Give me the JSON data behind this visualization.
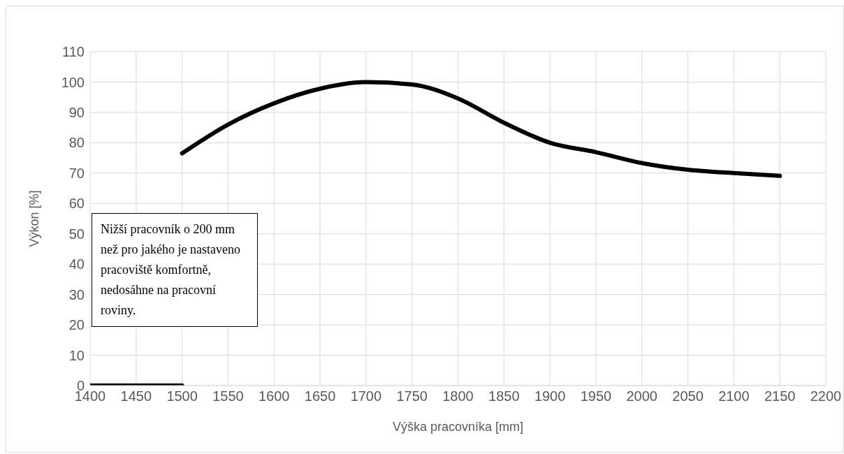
{
  "chart_data": {
    "type": "line",
    "xlabel": "Výška pracovníka [mm]",
    "ylabel": "Výkon [%]",
    "series": [
      {
        "color": "#000000",
        "x": [
          1400,
          1500
        ],
        "values": [
          0,
          0
        ]
      },
      {
        "color": "#000000",
        "x": [
          1500,
          1550,
          1600,
          1650,
          1700,
          1750,
          1800,
          1850,
          1900,
          1950,
          2000,
          2050,
          2100,
          2150
        ],
        "values": [
          76.5,
          86,
          93,
          97.8,
          100,
          99.2,
          94.6,
          86.6,
          80,
          76.9,
          73.3,
          71.1,
          70,
          69.1
        ]
      }
    ],
    "xlim": [
      1400,
      2200
    ],
    "xticks": [
      1400,
      1450,
      1500,
      1550,
      1600,
      1650,
      1700,
      1750,
      1800,
      1850,
      1900,
      1950,
      2000,
      2050,
      2100,
      2150,
      2200
    ],
    "ylim": [
      0,
      110
    ],
    "yticks": [
      0,
      10,
      20,
      30,
      40,
      50,
      60,
      70,
      80,
      90,
      100,
      110
    ],
    "grid": true,
    "marker": "none",
    "line_style": "solid",
    "annotations": [
      "Nižší pracovník o 200 mm než pro jakého je nastaveno pracoviště komfortně, nedosáhne na pracovní roviny."
    ]
  }
}
